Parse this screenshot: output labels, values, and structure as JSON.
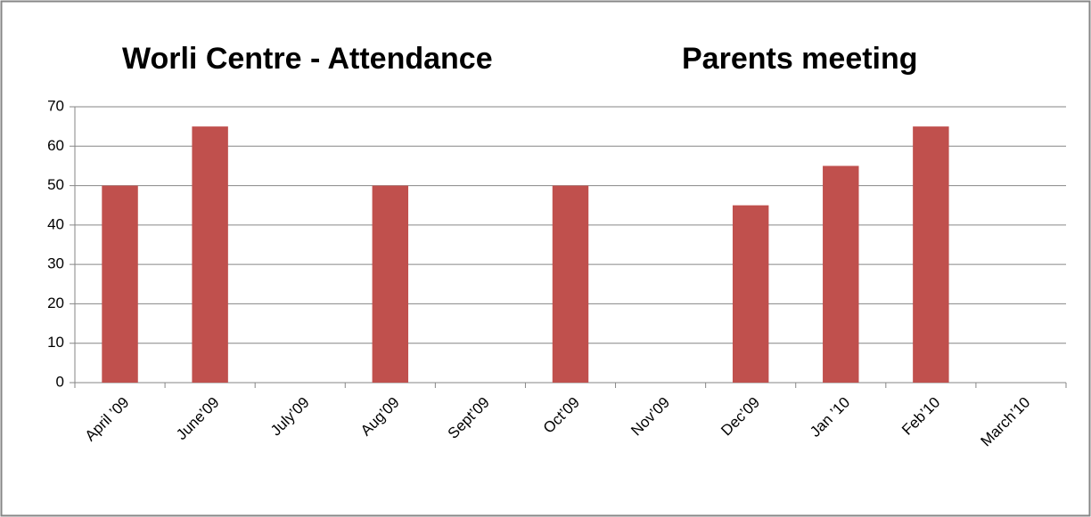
{
  "chart_data": {
    "type": "bar",
    "title": "Worli Centre - Attendance",
    "subtitle": "Parents meeting",
    "categories": [
      "April ’09",
      "June’09",
      "July’09",
      "Aug’09",
      "Sept’09",
      "Oct’09",
      "Nov’09",
      "Dec’09",
      "Jan ’10",
      "Feb’10",
      "March’10"
    ],
    "values": [
      50,
      65,
      null,
      50,
      null,
      50,
      null,
      45,
      55,
      65,
      null
    ],
    "color": "#c0504d",
    "ylim": [
      0,
      70
    ],
    "yticks": [
      0,
      10,
      20,
      30,
      40,
      50,
      60,
      70
    ],
    "grid": true
  }
}
